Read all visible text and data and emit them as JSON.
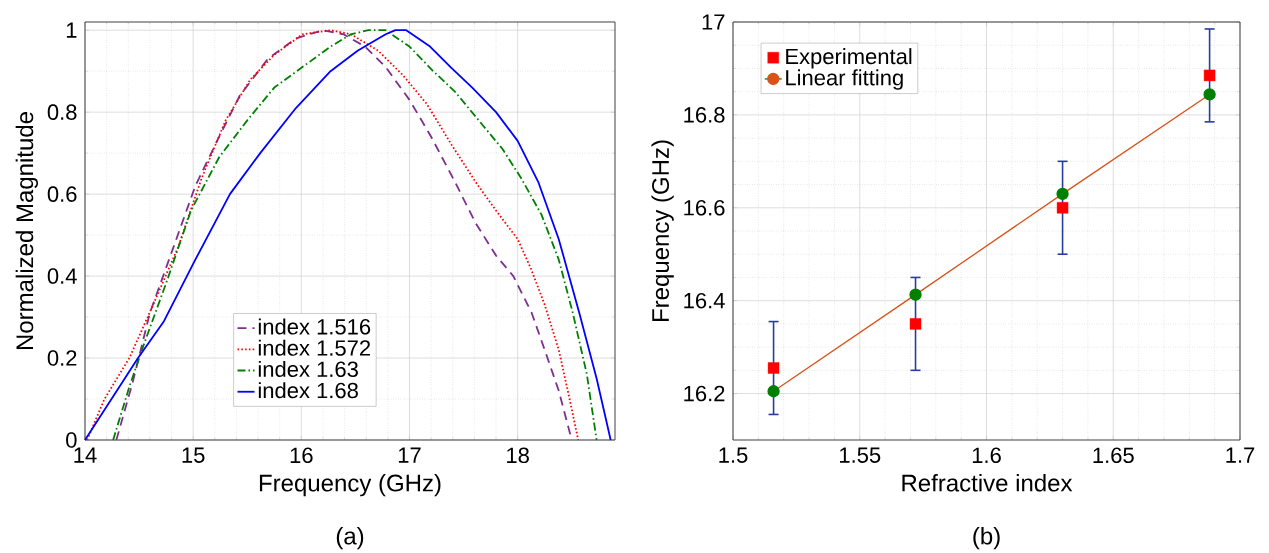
{
  "chart_data": [
    {
      "type": "line",
      "xlabel": "Frequency (GHz)",
      "ylabel": "Normalized Magnitude",
      "xlim": [
        14,
        18.9
      ],
      "ylim": [
        0,
        1.02
      ],
      "xticks": [
        14,
        15,
        16,
        17,
        18
      ],
      "yticks": [
        0,
        0.2,
        0.4,
        0.6,
        0.8,
        1
      ],
      "grid": true,
      "legend": "bottom",
      "annotations": [
        "(a)"
      ],
      "series": [
        {
          "name": "index 1.516",
          "color": "#7e2f8e",
          "line_style": "dashed",
          "x": [
            14.29,
            14.44,
            14.6,
            14.79,
            15.02,
            15.24,
            15.43,
            15.69,
            15.95,
            16.2,
            16.39,
            16.59,
            16.78,
            17.0,
            17.2,
            17.42,
            17.61,
            17.8,
            17.96,
            18.13,
            18.25,
            18.38,
            18.5
          ],
          "values": [
            0,
            0.14,
            0.31,
            0.45,
            0.62,
            0.74,
            0.84,
            0.93,
            0.98,
            1.0,
            0.99,
            0.96,
            0.91,
            0.83,
            0.74,
            0.63,
            0.53,
            0.45,
            0.4,
            0.31,
            0.22,
            0.12,
            0
          ]
        },
        {
          "name": "index 1.572",
          "color": "#ff0000",
          "line_style": "dotted",
          "x": [
            14.02,
            14.18,
            14.41,
            14.63,
            14.86,
            15.08,
            15.3,
            15.53,
            15.75,
            16.01,
            16.27,
            16.46,
            16.71,
            16.94,
            17.16,
            17.39,
            17.61,
            17.8,
            18.0,
            18.12,
            18.25,
            18.38,
            18.48,
            18.56
          ],
          "values": [
            0,
            0.1,
            0.2,
            0.33,
            0.47,
            0.64,
            0.78,
            0.88,
            0.94,
            0.99,
            1.0,
            0.99,
            0.95,
            0.89,
            0.82,
            0.72,
            0.63,
            0.56,
            0.49,
            0.42,
            0.33,
            0.22,
            0.1,
            0
          ]
        },
        {
          "name": "index 1.63",
          "color": "#008000",
          "line_style": "dashdot",
          "x": [
            14.26,
            14.41,
            14.54,
            14.76,
            14.98,
            15.24,
            15.5,
            15.75,
            16.01,
            16.27,
            16.46,
            16.62,
            16.78,
            17.0,
            17.22,
            17.42,
            17.64,
            17.86,
            18.03,
            18.22,
            18.38,
            18.51,
            18.64,
            18.73
          ],
          "values": [
            0,
            0.13,
            0.23,
            0.39,
            0.56,
            0.69,
            0.78,
            0.86,
            0.91,
            0.96,
            0.99,
            1.0,
            1.0,
            0.96,
            0.9,
            0.85,
            0.78,
            0.71,
            0.64,
            0.55,
            0.44,
            0.31,
            0.16,
            0
          ]
        },
        {
          "name": "index 1.68",
          "color": "#0000ff",
          "line_style": "solid",
          "x": [
            14.0,
            14.49,
            14.73,
            15.02,
            15.34,
            15.62,
            15.95,
            16.27,
            16.52,
            16.78,
            16.87,
            16.97,
            17.19,
            17.38,
            17.58,
            17.8,
            18.0,
            18.19,
            18.38,
            18.57,
            18.73,
            18.86
          ],
          "values": [
            0,
            0.2,
            0.29,
            0.44,
            0.6,
            0.7,
            0.81,
            0.9,
            0.95,
            0.99,
            1.0,
            1.0,
            0.96,
            0.91,
            0.86,
            0.8,
            0.73,
            0.63,
            0.49,
            0.31,
            0.15,
            0
          ]
        }
      ]
    },
    {
      "type": "scatter",
      "xlabel": "Refractive index",
      "ylabel": "Frequency (GHz)",
      "xlim": [
        1.5,
        1.7
      ],
      "ylim": [
        16.1,
        17
      ],
      "xticks": [
        1.5,
        1.55,
        1.6,
        1.65,
        1.7
      ],
      "yticks": [
        16.2,
        16.4,
        16.6,
        16.8,
        17
      ],
      "grid": true,
      "legend": "top left",
      "annotations": [
        "(b)"
      ],
      "series": [
        {
          "name": "Experimental",
          "type": "scatter",
          "marker": "square",
          "color": "#ff0000",
          "x": [
            1.516,
            1.572,
            1.63,
            1.688
          ],
          "values": [
            16.255,
            16.35,
            16.6,
            16.885
          ],
          "errors": [
            0.1,
            0.1,
            0.1,
            0.1
          ]
        },
        {
          "name": "Linear fitting",
          "type": "line",
          "marker": "circle",
          "color": "#d95319",
          "colors": [
            "#008000",
            "#008000",
            "#008000",
            "#008000"
          ],
          "x": [
            1.516,
            1.572,
            1.63,
            1.688
          ],
          "values": [
            16.205,
            16.413,
            16.63,
            16.844
          ]
        }
      ]
    }
  ]
}
